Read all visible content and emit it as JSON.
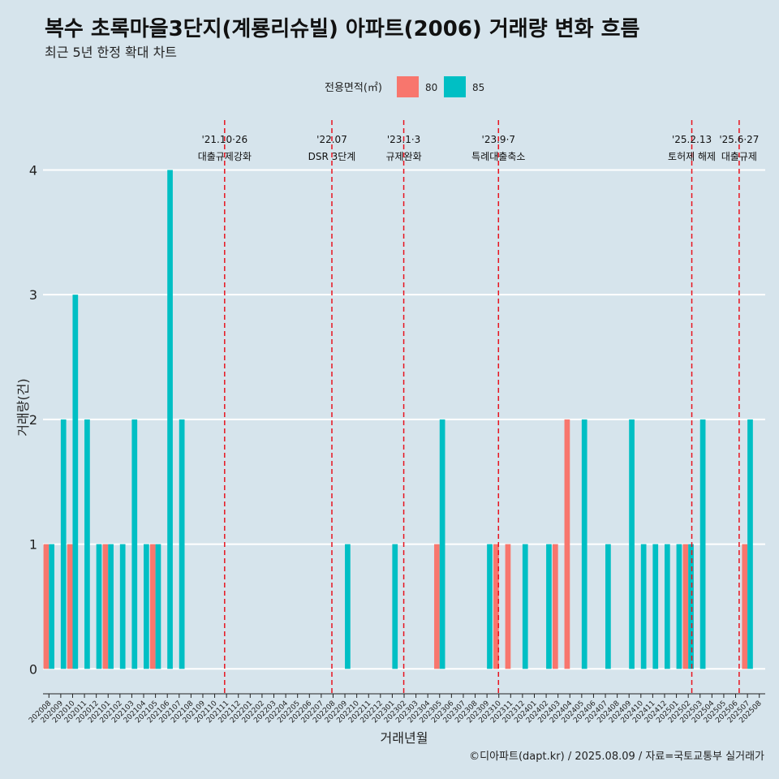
{
  "chart_data": {
    "type": "bar",
    "title": "복수 초록마을3단지(계룡리슈빌) 아파트(2006) 거래량 변화 흐름",
    "subtitle": "최근 5년 한정 확대 차트",
    "xlabel": "거래년월",
    "ylabel": "거래량(건)",
    "ylim": [
      -0.2,
      4.4
    ],
    "yticks": [
      0,
      1,
      2,
      3,
      4
    ],
    "legend": {
      "title": "전용면적(㎡)",
      "position": "top"
    },
    "categories": [
      "202008",
      "202009",
      "202010",
      "202011",
      "202012",
      "202101",
      "202102",
      "202103",
      "202104",
      "202105",
      "202106",
      "202107",
      "202108",
      "202109",
      "202110",
      "202111",
      "202112",
      "202201",
      "202202",
      "202203",
      "202204",
      "202205",
      "202206",
      "202207",
      "202208",
      "202209",
      "202210",
      "202211",
      "202212",
      "202301",
      "202302",
      "202303",
      "202304",
      "202305",
      "202306",
      "202307",
      "202308",
      "202309",
      "202310",
      "202311",
      "202312",
      "202401",
      "202402",
      "202403",
      "202404",
      "202405",
      "202406",
      "202407",
      "202408",
      "202409",
      "202410",
      "202411",
      "202412",
      "202501",
      "202502",
      "202503",
      "202504",
      "202505",
      "202506",
      "202507",
      "202508"
    ],
    "series": [
      {
        "name": "80",
        "color": "#f8766d",
        "values": [
          1,
          0,
          1,
          0,
          0,
          1,
          0,
          0,
          0,
          1,
          0,
          0,
          0,
          0,
          0,
          0,
          0,
          0,
          0,
          0,
          0,
          0,
          0,
          0,
          0,
          0,
          0,
          0,
          0,
          0,
          0,
          0,
          0,
          1,
          0,
          0,
          0,
          0,
          1,
          1,
          0,
          0,
          0,
          1,
          2,
          0,
          0,
          0,
          0,
          0,
          0,
          0,
          0,
          0,
          1,
          0,
          0,
          0,
          0,
          1,
          0
        ]
      },
      {
        "name": "85",
        "color": "#00bfc4",
        "values": [
          1,
          2,
          3,
          2,
          1,
          1,
          1,
          2,
          1,
          1,
          4,
          2,
          0,
          0,
          0,
          0,
          0,
          0,
          0,
          0,
          0,
          0,
          0,
          0,
          0,
          1,
          0,
          0,
          0,
          1,
          0,
          0,
          0,
          2,
          0,
          0,
          0,
          1,
          0,
          0,
          1,
          0,
          1,
          0,
          0,
          2,
          0,
          1,
          0,
          2,
          1,
          1,
          1,
          1,
          1,
          2,
          0,
          0,
          0,
          2,
          0
        ]
      }
    ],
    "events": [
      {
        "index": 14.84,
        "date": "'21.10·26",
        "label": "대출규제강화"
      },
      {
        "index": 23.9,
        "date": "'22.07",
        "label": "DSR 3단계"
      },
      {
        "index": 29.97,
        "date": "'23.1·3",
        "label": "규제완화"
      },
      {
        "index": 37.97,
        "date": "'23.9·7",
        "label": "특례대출축소"
      },
      {
        "index": 54.3,
        "date": "'25.2.13",
        "label": "토허제 해제"
      },
      {
        "index": 58.3,
        "date": "'25.6·27",
        "label": "대출규제"
      }
    ],
    "caption": "©디아파트(dapt.kr) / 2025.08.09 / 자료=국토교통부 실거래가"
  }
}
